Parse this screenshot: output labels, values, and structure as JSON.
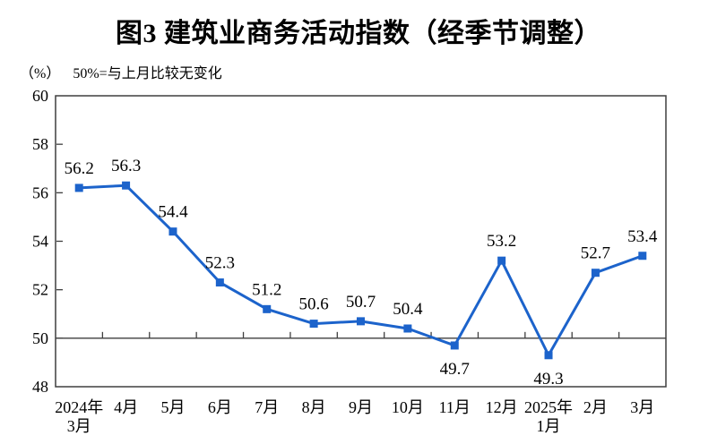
{
  "page": {
    "background": "#ffffff"
  },
  "chart_data": {
    "type": "line",
    "title": "图3  建筑业商务活动指数（经季节调整）",
    "unit_label": "（%）",
    "note": "50%=与上月比较无变化",
    "categories": [
      "2024年\n3月",
      "4月",
      "5月",
      "6月",
      "7月",
      "8月",
      "9月",
      "10月",
      "11月",
      "12月",
      "2025年\n1月",
      "2月",
      "3月"
    ],
    "values": [
      56.2,
      56.3,
      54.4,
      52.3,
      51.2,
      50.6,
      50.7,
      50.4,
      49.7,
      53.2,
      49.3,
      52.7,
      53.4
    ],
    "data_labels": [
      "56.2",
      "56.3",
      "54.4",
      "52.3",
      "51.2",
      "50.6",
      "50.7",
      "50.4",
      "49.7",
      "53.2",
      "49.3",
      "52.7",
      "53.4"
    ],
    "label_position": [
      "above",
      "above",
      "above",
      "above",
      "above",
      "above",
      "above",
      "above",
      "below",
      "above",
      "below",
      "above",
      "above"
    ],
    "ylim": [
      48,
      60
    ],
    "ytick_step": 2,
    "ytick_labels": [
      "48",
      "50",
      "52",
      "54",
      "56",
      "58",
      "60"
    ],
    "reference_line": 50,
    "grid": false,
    "legend_position": "none",
    "marker": "square",
    "line_color": "#1c63cb",
    "axis_color": "#3f3f3f",
    "text_color": "#000000"
  }
}
